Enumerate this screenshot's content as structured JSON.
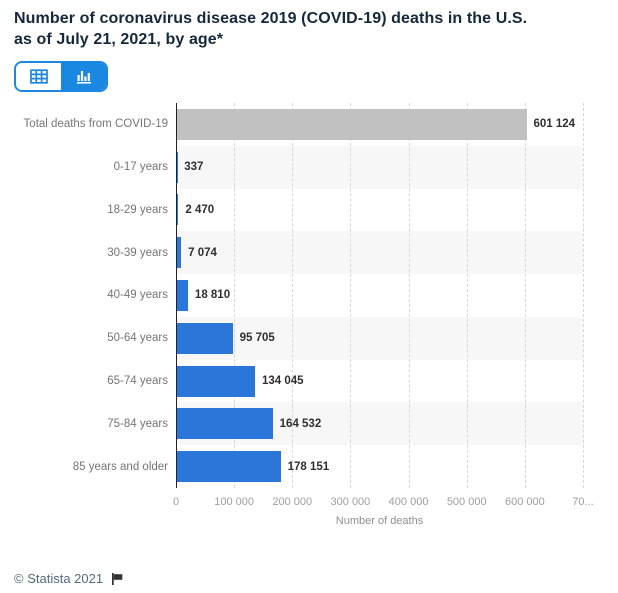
{
  "header": {
    "title_lines": [
      "Number of coronavirus disease 2019 (COVID-19) deaths in the U.S.",
      "as of July 21, 2021, by age*"
    ]
  },
  "toolbar": {
    "views": [
      {
        "id": "table",
        "icon": "table-grid-icon",
        "active": false
      },
      {
        "id": "chart",
        "icon": "bar-chart-icon",
        "active": true
      }
    ]
  },
  "chart_data": {
    "type": "bar",
    "orientation": "horizontal",
    "title": "Number of coronavirus disease 2019 (COVID-19) deaths in the U.S. as of July 21, 2021, by age*",
    "categories": [
      "Total deaths from COVID-19",
      "0-17 years",
      "18-29 years",
      "30-39 years",
      "40-49 years",
      "50-64 years",
      "65-74 years",
      "75-84 years",
      "85 years and older"
    ],
    "values": [
      601124,
      337,
      2470,
      7074,
      18810,
      95705,
      134045,
      164532,
      178151
    ],
    "value_labels": [
      "601 124",
      "337",
      "2 470",
      "7 074",
      "18 810",
      "95 705",
      "134 045",
      "164 532",
      "178 151"
    ],
    "bar_colors": [
      "#c1c1c1",
      "#2b77d9",
      "#2b77d9",
      "#2b77d9",
      "#2b77d9",
      "#2b77d9",
      "#2b77d9",
      "#2b77d9",
      "#2b77d9"
    ],
    "xlabel": "Number of deaths",
    "xlim": [
      0,
      700000
    ],
    "x_ticks": [
      {
        "value": 0,
        "label": "0"
      },
      {
        "value": 100000,
        "label": "100 000"
      },
      {
        "value": 200000,
        "label": "200 000"
      },
      {
        "value": 300000,
        "label": "300 000"
      },
      {
        "value": 400000,
        "label": "400 000"
      },
      {
        "value": 500000,
        "label": "500 000"
      },
      {
        "value": 600000,
        "label": "600 000"
      },
      {
        "value": 700000,
        "label": "70..."
      }
    ],
    "grid": "dashed-vertical",
    "row_stripes": true,
    "legend": "none"
  },
  "footer": {
    "copyright": "© Statista 2021"
  },
  "colors": {
    "accent_blue": "#1a87e0",
    "bar_blue": "#2b77d9",
    "total_bar_gray": "#c1c1c1",
    "title_text": "#15283c",
    "category_label": "#757575",
    "value_label": "#2f2f2f",
    "tick_label": "#9e9e9e",
    "footer_text": "#56697a",
    "stripe": "#f7f7f7"
  }
}
